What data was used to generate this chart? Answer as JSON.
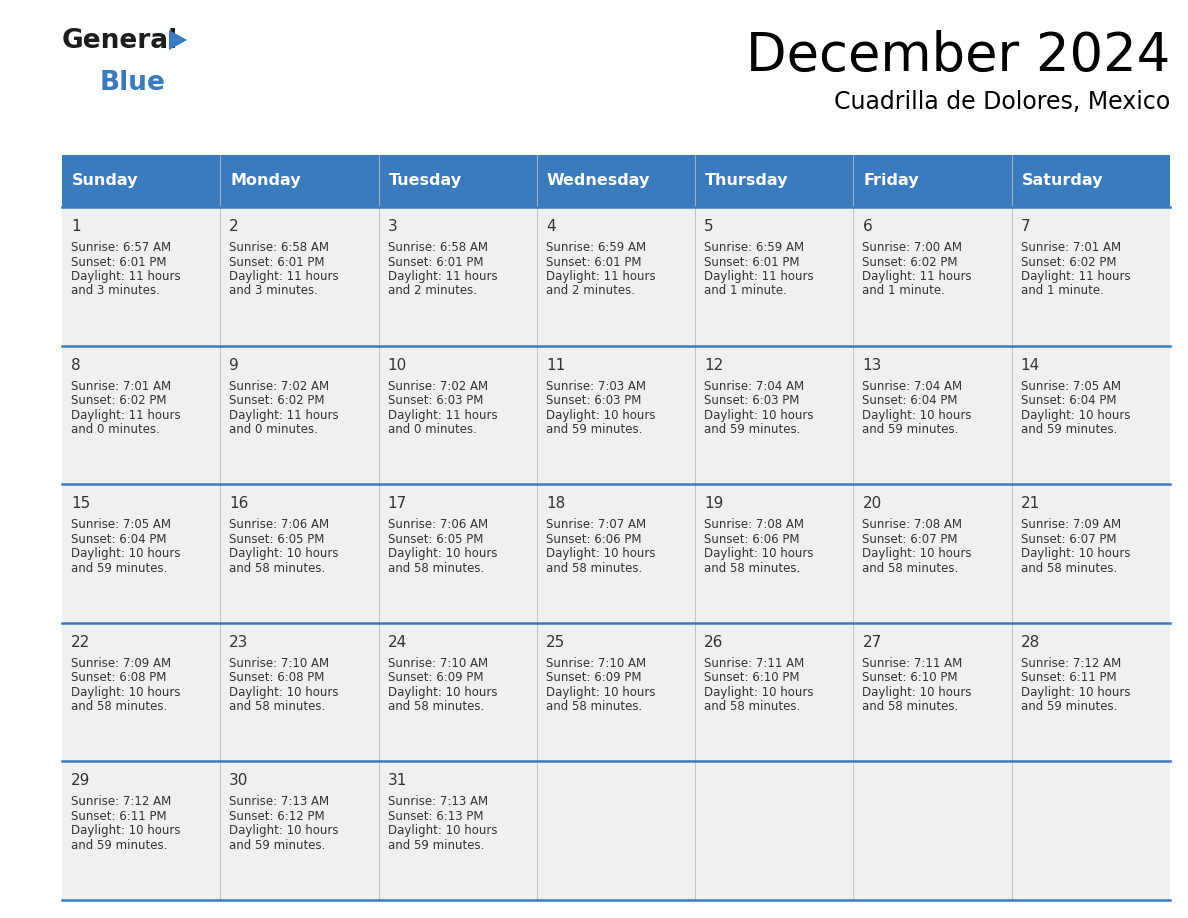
{
  "title": "December 2024",
  "subtitle": "Cuadrilla de Dolores, Mexico",
  "header_color": "#3a7bbf",
  "header_text_color": "#ffffff",
  "cell_bg_color": "#f0f0f0",
  "border_color": "#3a7bbf",
  "text_color": "#333333",
  "days_of_week": [
    "Sunday",
    "Monday",
    "Tuesday",
    "Wednesday",
    "Thursday",
    "Friday",
    "Saturday"
  ],
  "days": [
    {
      "day": 1,
      "col": 0,
      "row": 0,
      "sunrise": "6:57 AM",
      "sunset": "6:01 PM",
      "daylight_h": "11 hours",
      "daylight_m": "and 3 minutes."
    },
    {
      "day": 2,
      "col": 1,
      "row": 0,
      "sunrise": "6:58 AM",
      "sunset": "6:01 PM",
      "daylight_h": "11 hours",
      "daylight_m": "and 3 minutes."
    },
    {
      "day": 3,
      "col": 2,
      "row": 0,
      "sunrise": "6:58 AM",
      "sunset": "6:01 PM",
      "daylight_h": "11 hours",
      "daylight_m": "and 2 minutes."
    },
    {
      "day": 4,
      "col": 3,
      "row": 0,
      "sunrise": "6:59 AM",
      "sunset": "6:01 PM",
      "daylight_h": "11 hours",
      "daylight_m": "and 2 minutes."
    },
    {
      "day": 5,
      "col": 4,
      "row": 0,
      "sunrise": "6:59 AM",
      "sunset": "6:01 PM",
      "daylight_h": "11 hours",
      "daylight_m": "and 1 minute."
    },
    {
      "day": 6,
      "col": 5,
      "row": 0,
      "sunrise": "7:00 AM",
      "sunset": "6:02 PM",
      "daylight_h": "11 hours",
      "daylight_m": "and 1 minute."
    },
    {
      "day": 7,
      "col": 6,
      "row": 0,
      "sunrise": "7:01 AM",
      "sunset": "6:02 PM",
      "daylight_h": "11 hours",
      "daylight_m": "and 1 minute."
    },
    {
      "day": 8,
      "col": 0,
      "row": 1,
      "sunrise": "7:01 AM",
      "sunset": "6:02 PM",
      "daylight_h": "11 hours",
      "daylight_m": "and 0 minutes."
    },
    {
      "day": 9,
      "col": 1,
      "row": 1,
      "sunrise": "7:02 AM",
      "sunset": "6:02 PM",
      "daylight_h": "11 hours",
      "daylight_m": "and 0 minutes."
    },
    {
      "day": 10,
      "col": 2,
      "row": 1,
      "sunrise": "7:02 AM",
      "sunset": "6:03 PM",
      "daylight_h": "11 hours",
      "daylight_m": "and 0 minutes."
    },
    {
      "day": 11,
      "col": 3,
      "row": 1,
      "sunrise": "7:03 AM",
      "sunset": "6:03 PM",
      "daylight_h": "10 hours",
      "daylight_m": "and 59 minutes."
    },
    {
      "day": 12,
      "col": 4,
      "row": 1,
      "sunrise": "7:04 AM",
      "sunset": "6:03 PM",
      "daylight_h": "10 hours",
      "daylight_m": "and 59 minutes."
    },
    {
      "day": 13,
      "col": 5,
      "row": 1,
      "sunrise": "7:04 AM",
      "sunset": "6:04 PM",
      "daylight_h": "10 hours",
      "daylight_m": "and 59 minutes."
    },
    {
      "day": 14,
      "col": 6,
      "row": 1,
      "sunrise": "7:05 AM",
      "sunset": "6:04 PM",
      "daylight_h": "10 hours",
      "daylight_m": "and 59 minutes."
    },
    {
      "day": 15,
      "col": 0,
      "row": 2,
      "sunrise": "7:05 AM",
      "sunset": "6:04 PM",
      "daylight_h": "10 hours",
      "daylight_m": "and 59 minutes."
    },
    {
      "day": 16,
      "col": 1,
      "row": 2,
      "sunrise": "7:06 AM",
      "sunset": "6:05 PM",
      "daylight_h": "10 hours",
      "daylight_m": "and 58 minutes."
    },
    {
      "day": 17,
      "col": 2,
      "row": 2,
      "sunrise": "7:06 AM",
      "sunset": "6:05 PM",
      "daylight_h": "10 hours",
      "daylight_m": "and 58 minutes."
    },
    {
      "day": 18,
      "col": 3,
      "row": 2,
      "sunrise": "7:07 AM",
      "sunset": "6:06 PM",
      "daylight_h": "10 hours",
      "daylight_m": "and 58 minutes."
    },
    {
      "day": 19,
      "col": 4,
      "row": 2,
      "sunrise": "7:08 AM",
      "sunset": "6:06 PM",
      "daylight_h": "10 hours",
      "daylight_m": "and 58 minutes."
    },
    {
      "day": 20,
      "col": 5,
      "row": 2,
      "sunrise": "7:08 AM",
      "sunset": "6:07 PM",
      "daylight_h": "10 hours",
      "daylight_m": "and 58 minutes."
    },
    {
      "day": 21,
      "col": 6,
      "row": 2,
      "sunrise": "7:09 AM",
      "sunset": "6:07 PM",
      "daylight_h": "10 hours",
      "daylight_m": "and 58 minutes."
    },
    {
      "day": 22,
      "col": 0,
      "row": 3,
      "sunrise": "7:09 AM",
      "sunset": "6:08 PM",
      "daylight_h": "10 hours",
      "daylight_m": "and 58 minutes."
    },
    {
      "day": 23,
      "col": 1,
      "row": 3,
      "sunrise": "7:10 AM",
      "sunset": "6:08 PM",
      "daylight_h": "10 hours",
      "daylight_m": "and 58 minutes."
    },
    {
      "day": 24,
      "col": 2,
      "row": 3,
      "sunrise": "7:10 AM",
      "sunset": "6:09 PM",
      "daylight_h": "10 hours",
      "daylight_m": "and 58 minutes."
    },
    {
      "day": 25,
      "col": 3,
      "row": 3,
      "sunrise": "7:10 AM",
      "sunset": "6:09 PM",
      "daylight_h": "10 hours",
      "daylight_m": "and 58 minutes."
    },
    {
      "day": 26,
      "col": 4,
      "row": 3,
      "sunrise": "7:11 AM",
      "sunset": "6:10 PM",
      "daylight_h": "10 hours",
      "daylight_m": "and 58 minutes."
    },
    {
      "day": 27,
      "col": 5,
      "row": 3,
      "sunrise": "7:11 AM",
      "sunset": "6:10 PM",
      "daylight_h": "10 hours",
      "daylight_m": "and 58 minutes."
    },
    {
      "day": 28,
      "col": 6,
      "row": 3,
      "sunrise": "7:12 AM",
      "sunset": "6:11 PM",
      "daylight_h": "10 hours",
      "daylight_m": "and 59 minutes."
    },
    {
      "day": 29,
      "col": 0,
      "row": 4,
      "sunrise": "7:12 AM",
      "sunset": "6:11 PM",
      "daylight_h": "10 hours",
      "daylight_m": "and 59 minutes."
    },
    {
      "day": 30,
      "col": 1,
      "row": 4,
      "sunrise": "7:13 AM",
      "sunset": "6:12 PM",
      "daylight_h": "10 hours",
      "daylight_m": "and 59 minutes."
    },
    {
      "day": 31,
      "col": 2,
      "row": 4,
      "sunrise": "7:13 AM",
      "sunset": "6:13 PM",
      "daylight_h": "10 hours",
      "daylight_m": "and 59 minutes."
    }
  ],
  "fig_width": 11.88,
  "fig_height": 9.18,
  "dpi": 100
}
